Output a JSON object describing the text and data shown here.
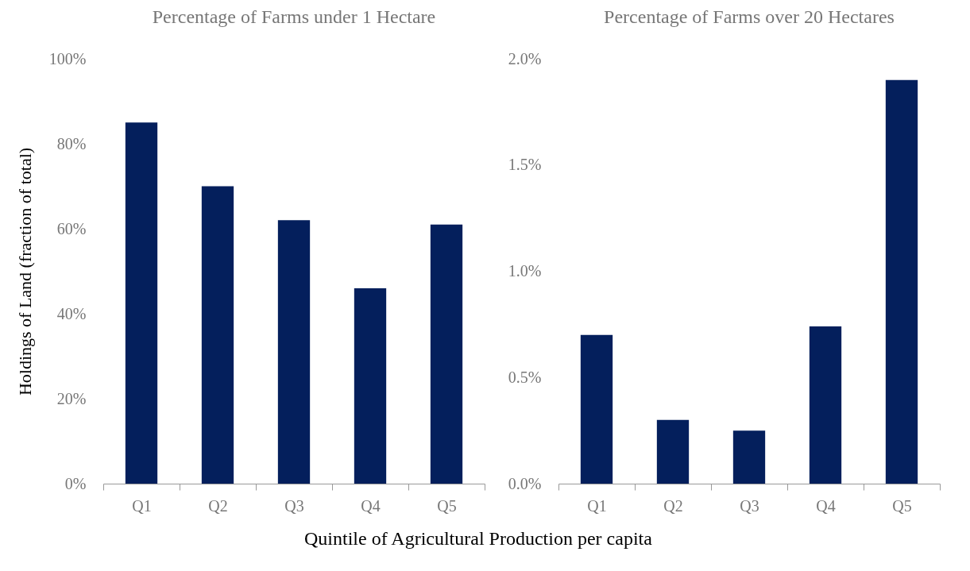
{
  "chart_data": [
    {
      "type": "bar",
      "title": "Percentage of Farms under 1 Hectare",
      "ylabel": "Holdings of Land (fraction of total)",
      "xlabel": "Quintile of Agricultural Production per capita",
      "categories": [
        "Q1",
        "Q2",
        "Q3",
        "Q4",
        "Q5"
      ],
      "values": [
        85,
        70,
        62,
        46,
        61
      ],
      "color": "#041f5c",
      "ylim": [
        0,
        100
      ],
      "yticks": [
        {
          "value": 0,
          "label": "0%"
        },
        {
          "value": 20,
          "label": "20%"
        },
        {
          "value": 40,
          "label": "40%"
        },
        {
          "value": 60,
          "label": "60%"
        },
        {
          "value": 80,
          "label": "80%"
        },
        {
          "value": 100,
          "label": "100%"
        }
      ],
      "grid": false
    },
    {
      "type": "bar",
      "title": "Percentage of Farms over 20 Hectares",
      "categories": [
        "Q1",
        "Q2",
        "Q3",
        "Q4",
        "Q5"
      ],
      "values": [
        0.7,
        0.3,
        0.25,
        0.74,
        1.9
      ],
      "color": "#041f5c",
      "ylim": [
        0,
        2.0
      ],
      "yticks": [
        {
          "value": 0,
          "label": "0.0%"
        },
        {
          "value": 0.5,
          "label": "0.5%"
        },
        {
          "value": 1.0,
          "label": "1.0%"
        },
        {
          "value": 1.5,
          "label": "1.5%"
        },
        {
          "value": 2.0,
          "label": "2.0%"
        }
      ],
      "grid": false
    }
  ]
}
